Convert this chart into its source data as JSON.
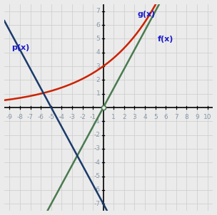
{
  "xlim": [
    -9.5,
    10.5
  ],
  "ylim": [
    -7.5,
    7.5
  ],
  "xticks": [
    -9,
    -8,
    -7,
    -6,
    -5,
    -4,
    -3,
    -2,
    -1,
    1,
    2,
    3,
    4,
    5,
    6,
    7,
    8,
    9,
    10
  ],
  "yticks": [
    -7,
    -6,
    -5,
    -4,
    -3,
    -2,
    -1,
    1,
    2,
    3,
    4,
    5,
    6,
    7
  ],
  "g_label": "g(x)",
  "f_label": "f(x)",
  "p_label": "p(x)",
  "g_color": "#cc2200",
  "f_color": "#4a7a50",
  "p_color": "#1a3a6a",
  "label_color": "#1a1acc",
  "tick_color": "#8899aa",
  "grid_color": "#d0d0d0",
  "bg_color": "#ebebeb",
  "g_base": 1.2,
  "g_scale": 3.0,
  "f_slope": 1.4,
  "p_slope": -1.4,
  "p_intercept": -7.0,
  "figsize": [
    3.04,
    3.02
  ],
  "dpi": 100
}
